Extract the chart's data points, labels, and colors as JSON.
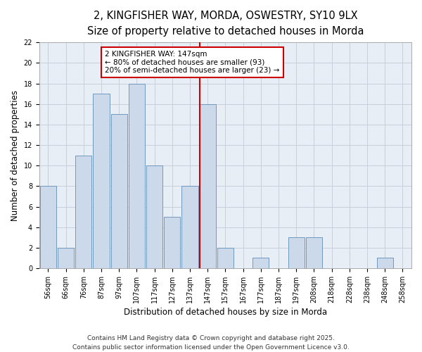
{
  "title_line1": "2, KINGFISHER WAY, MORDA, OSWESTRY, SY10 9LX",
  "title_line2": "Size of property relative to detached houses in Morda",
  "xlabel": "Distribution of detached houses by size in Morda",
  "ylabel": "Number of detached properties",
  "categories": [
    "56sqm",
    "66sqm",
    "76sqm",
    "87sqm",
    "97sqm",
    "107sqm",
    "117sqm",
    "127sqm",
    "137sqm",
    "147sqm",
    "157sqm",
    "167sqm",
    "177sqm",
    "187sqm",
    "197sqm",
    "208sqm",
    "218sqm",
    "228sqm",
    "238sqm",
    "248sqm",
    "258sqm"
  ],
  "values": [
    8,
    2,
    11,
    17,
    15,
    18,
    10,
    5,
    8,
    16,
    2,
    0,
    1,
    0,
    3,
    3,
    0,
    0,
    0,
    1,
    0
  ],
  "bar_color": "#ccd9ea",
  "bar_edge_color": "#7099be",
  "highlight_index": 9,
  "highlight_line_color": "#cc0000",
  "annotation_line1": "2 KINGFISHER WAY: 147sqm",
  "annotation_line2": "← 80% of detached houses are smaller (93)",
  "annotation_line3": "20% of semi-detached houses are larger (23) →",
  "annotation_box_color": "#ffffff",
  "annotation_box_edge": "#cc0000",
  "ylim": [
    0,
    22
  ],
  "yticks": [
    0,
    2,
    4,
    6,
    8,
    10,
    12,
    14,
    16,
    18,
    20,
    22
  ],
  "grid_color": "#c8d0dc",
  "background_color": "#e8eef5",
  "footer_line1": "Contains HM Land Registry data © Crown copyright and database right 2025.",
  "footer_line2": "Contains public sector information licensed under the Open Government Licence v3.0.",
  "title_fontsize": 10.5,
  "subtitle_fontsize": 9.5,
  "axis_label_fontsize": 8.5,
  "tick_fontsize": 7,
  "annotation_fontsize": 7.5,
  "footer_fontsize": 6.5
}
